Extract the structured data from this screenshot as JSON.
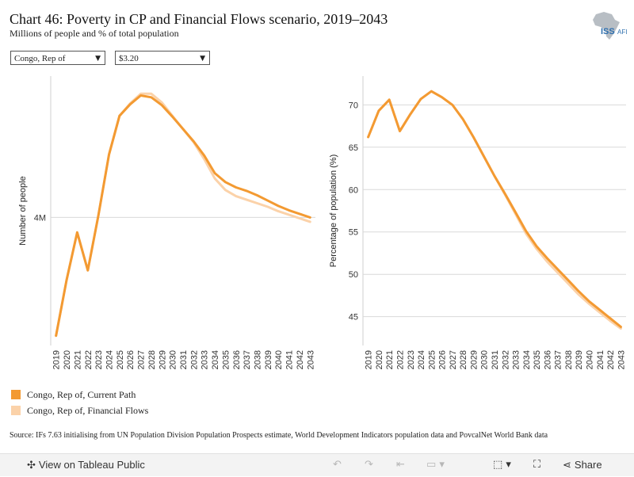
{
  "header": {
    "title": "Chart 46: Poverty in CP and Financial Flows scenario, 2019–2043",
    "subtitle": "Millions of people and % of total population",
    "logo_text": "ISS",
    "logo_text2": "AFI"
  },
  "filters": {
    "country": "Congo, Rep of",
    "threshold": "$3.20"
  },
  "legend": {
    "items": [
      {
        "label": "Congo, Rep of, Current Path",
        "color": "#f39a32"
      },
      {
        "label": "Congo, Rep of, Financial Flows",
        "color": "#fbd2a9"
      }
    ]
  },
  "source": "Source: IFs 7.63 initialising from UN Population Division Population Prospects estimate, World Development Indicators population data and PovcalNet World Bank data",
  "toolbar": {
    "view_label": "View on Tableau Public",
    "share_label": "Share"
  },
  "chart_data": [
    {
      "type": "line",
      "ylabel": "Number of people",
      "y_tick_values": [
        4
      ],
      "y_tick_labels": [
        "4M"
      ],
      "ylim": [
        2.55,
        5.6
      ],
      "x": [
        "2019",
        "2020",
        "2021",
        "2022",
        "2023",
        "2024",
        "2025",
        "2026",
        "2027",
        "2028",
        "2029",
        "2030",
        "2031",
        "2032",
        "2033",
        "2034",
        "2035",
        "2036",
        "2037",
        "2038",
        "2039",
        "2040",
        "2041",
        "2042",
        "2043"
      ],
      "series": [
        {
          "name": "Congo, Rep of, Current Path",
          "color": "#f39a32",
          "values": [
            2.66,
            3.29,
            3.83,
            3.4,
            4.02,
            4.71,
            5.15,
            5.28,
            5.38,
            5.36,
            5.27,
            5.14,
            5.0,
            4.86,
            4.7,
            4.5,
            4.4,
            4.34,
            4.3,
            4.25,
            4.19,
            4.13,
            4.08,
            4.04,
            4.0
          ]
        },
        {
          "name": "Congo, Rep of, Financial Flows",
          "color": "#fbd2a9",
          "values": [
            2.66,
            3.29,
            3.83,
            3.4,
            4.02,
            4.71,
            5.15,
            5.29,
            5.4,
            5.4,
            5.3,
            5.15,
            5.0,
            4.85,
            4.66,
            4.44,
            4.31,
            4.24,
            4.2,
            4.16,
            4.12,
            4.07,
            4.03,
            3.99,
            3.95
          ]
        }
      ]
    },
    {
      "type": "line",
      "ylabel": "Percentage of population (%)",
      "y_tick_values": [
        45,
        50,
        55,
        60,
        65,
        70
      ],
      "ylim": [
        41.6,
        73.4
      ],
      "x": [
        "2019",
        "2020",
        "2021",
        "2022",
        "2023",
        "2024",
        "2025",
        "2026",
        "2027",
        "2028",
        "2029",
        "2030",
        "2031",
        "2032",
        "2033",
        "2034",
        "2035",
        "2036",
        "2037",
        "2038",
        "2039",
        "2040",
        "2041",
        "2042",
        "2043"
      ],
      "series": [
        {
          "name": "Congo, Rep of, Current Path",
          "color": "#f39a32",
          "values": [
            66.2,
            69.3,
            70.6,
            66.9,
            68.9,
            70.7,
            71.6,
            70.9,
            70.0,
            68.3,
            66.2,
            63.9,
            61.6,
            59.5,
            57.3,
            55.1,
            53.3,
            51.9,
            50.6,
            49.3,
            48.0,
            46.8,
            45.8,
            44.8,
            43.8
          ]
        },
        {
          "name": "Congo, Rep of, Financial Flows",
          "color": "#fbd2a9",
          "values": [
            66.2,
            69.3,
            70.6,
            66.9,
            68.9,
            70.7,
            71.6,
            70.9,
            70.0,
            68.3,
            66.2,
            63.9,
            61.6,
            59.4,
            57.1,
            54.8,
            53.0,
            51.5,
            50.2,
            48.9,
            47.6,
            46.5,
            45.5,
            44.5,
            43.6
          ]
        }
      ]
    }
  ]
}
